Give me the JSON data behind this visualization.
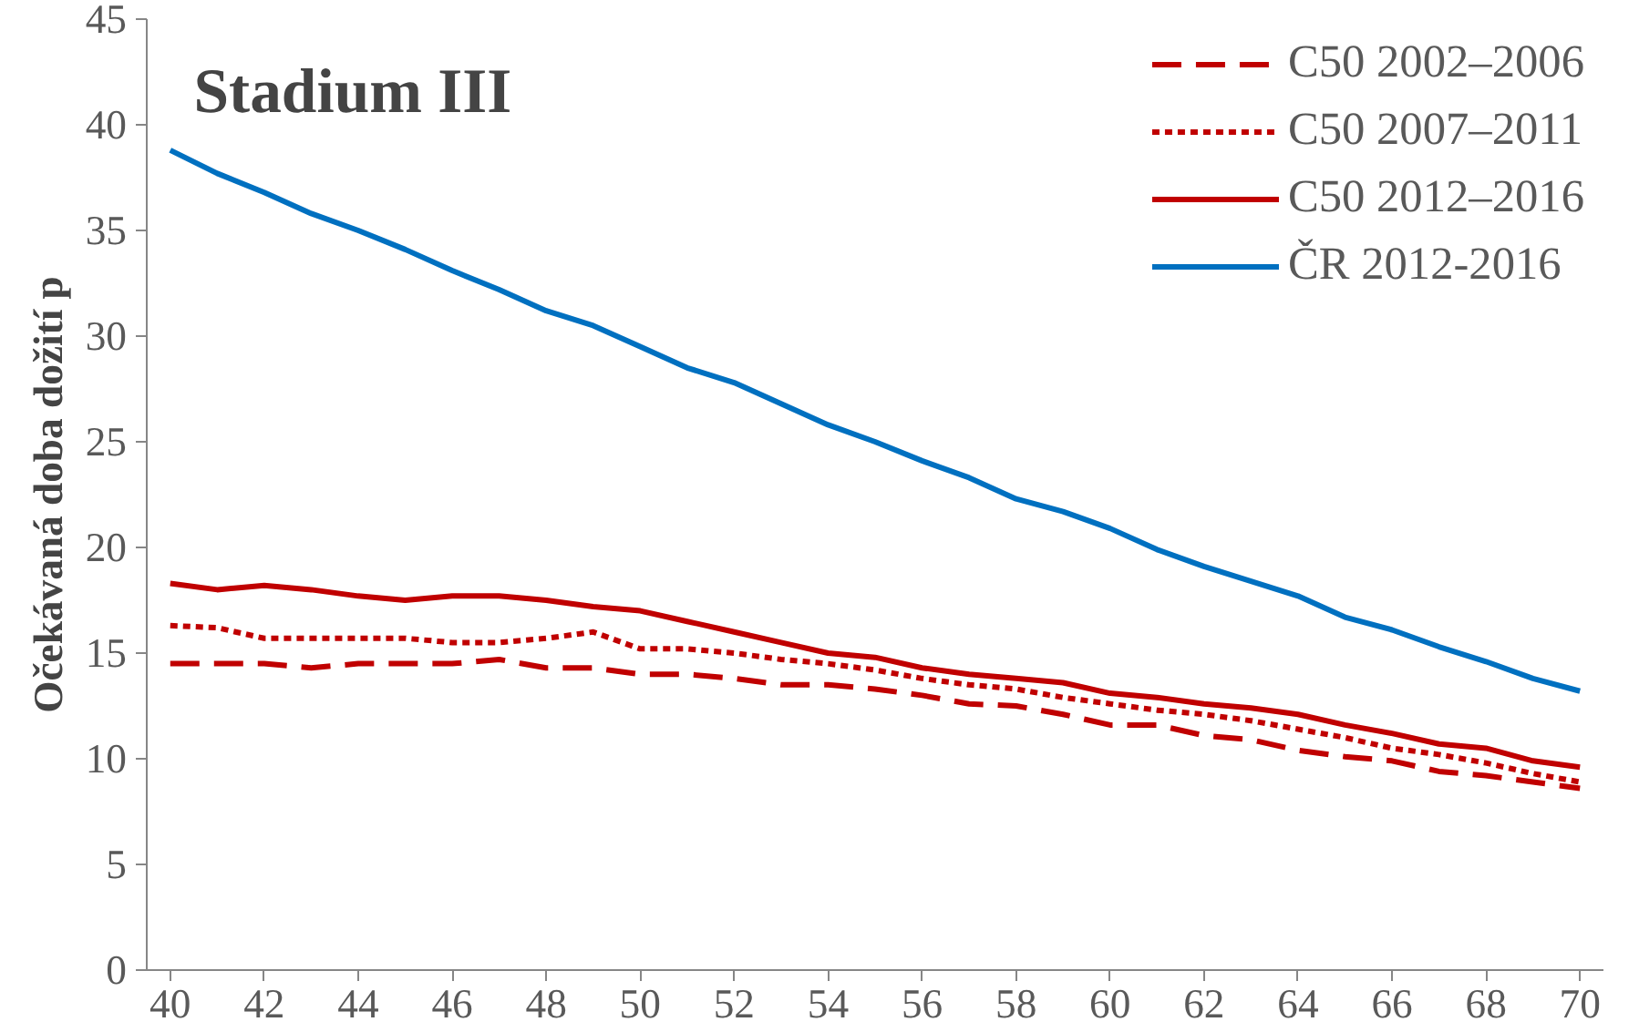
{
  "chart_data": {
    "type": "line",
    "title": "Stadium III",
    "ylabel": "Očekávaná doba dožití p",
    "x": [
      40,
      41,
      42,
      43,
      44,
      45,
      46,
      47,
      48,
      49,
      50,
      51,
      52,
      53,
      54,
      55,
      56,
      57,
      58,
      59,
      60,
      61,
      62,
      63,
      64,
      65,
      66,
      67,
      68,
      69,
      70
    ],
    "series": [
      {
        "name": "C50 2002–2006",
        "color": "#c00000",
        "line_style": "dashed",
        "values": [
          14.5,
          14.5,
          14.5,
          14.3,
          14.5,
          14.5,
          14.5,
          14.7,
          14.3,
          14.3,
          14.0,
          14.0,
          13.8,
          13.5,
          13.5,
          13.3,
          13.0,
          12.6,
          12.5,
          12.1,
          11.6,
          11.6,
          11.1,
          10.9,
          10.4,
          10.1,
          9.9,
          9.4,
          9.2,
          8.9,
          8.6
        ]
      },
      {
        "name": "C50 2007–2011",
        "color": "#c00000",
        "line_style": "dotted",
        "values": [
          16.3,
          16.2,
          15.7,
          15.7,
          15.7,
          15.7,
          15.5,
          15.5,
          15.7,
          16.0,
          15.2,
          15.2,
          15.0,
          14.7,
          14.5,
          14.2,
          13.8,
          13.5,
          13.3,
          12.9,
          12.6,
          12.3,
          12.1,
          11.8,
          11.4,
          11.0,
          10.5,
          10.2,
          9.8,
          9.3,
          8.9
        ]
      },
      {
        "name": "C50 2012–2016",
        "color": "#c00000",
        "line_style": "solid",
        "values": [
          18.3,
          18.0,
          18.2,
          18.0,
          17.7,
          17.5,
          17.7,
          17.7,
          17.5,
          17.2,
          17.0,
          16.5,
          16.0,
          15.5,
          15.0,
          14.8,
          14.3,
          14.0,
          13.8,
          13.6,
          13.1,
          12.9,
          12.6,
          12.4,
          12.1,
          11.6,
          11.2,
          10.7,
          10.5,
          9.9,
          9.6
        ]
      },
      {
        "name": "ČR 2012-2016",
        "color": "#0070c0",
        "line_style": "solid",
        "values": [
          38.8,
          37.7,
          36.8,
          35.8,
          35.0,
          34.1,
          33.1,
          32.2,
          31.2,
          30.5,
          29.5,
          28.5,
          27.8,
          26.8,
          25.8,
          25.0,
          24.1,
          23.3,
          22.3,
          21.7,
          20.9,
          19.9,
          19.1,
          18.4,
          17.7,
          16.7,
          16.1,
          15.3,
          14.6,
          13.8,
          13.2
        ]
      }
    ],
    "xlim": [
      39.5,
      70.5
    ],
    "xticks": [
      40,
      42,
      44,
      46,
      48,
      50,
      52,
      54,
      56,
      58,
      60,
      62,
      64,
      66,
      68,
      70
    ],
    "ylim": [
      0,
      45
    ],
    "yticks": [
      0,
      5,
      10,
      15,
      20,
      25,
      30,
      35,
      40,
      45
    ],
    "grid": false,
    "legend": "top right",
    "marker": "none"
  }
}
